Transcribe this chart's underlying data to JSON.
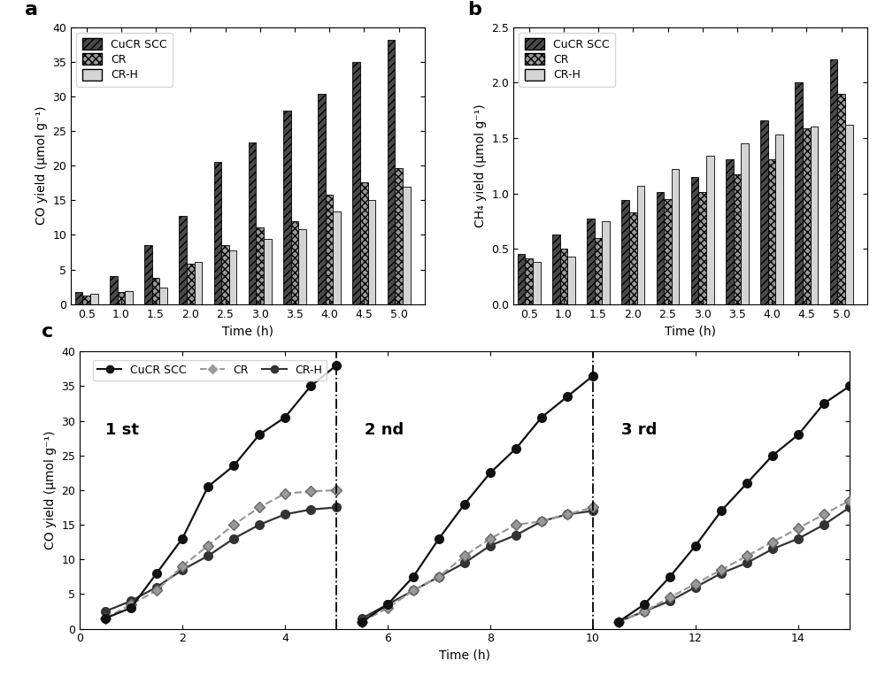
{
  "panel_a": {
    "times": [
      0.5,
      1.0,
      1.5,
      2.0,
      2.5,
      3.0,
      3.5,
      4.0,
      4.5,
      5.0
    ],
    "CuCR_SCC": [
      1.8,
      4.0,
      8.5,
      12.8,
      20.5,
      23.3,
      28.0,
      30.4,
      35.0,
      38.2
    ],
    "CR": [
      1.2,
      1.8,
      3.8,
      5.9,
      8.5,
      11.1,
      12.0,
      15.8,
      17.6,
      19.7
    ],
    "CR_H": [
      1.5,
      1.9,
      2.4,
      6.1,
      7.8,
      9.4,
      10.8,
      13.4,
      15.1,
      17.0
    ],
    "ylabel": "CO yield (μmol g⁻¹)",
    "xlabel": "Time (h)",
    "ylim": [
      0,
      40
    ],
    "yticks": [
      0,
      5,
      10,
      15,
      20,
      25,
      30,
      35,
      40
    ]
  },
  "panel_b": {
    "times": [
      0.5,
      1.0,
      1.5,
      2.0,
      2.5,
      3.0,
      3.5,
      4.0,
      4.5,
      5.0
    ],
    "CuCR_SCC": [
      0.45,
      0.63,
      0.77,
      0.94,
      1.01,
      1.15,
      1.31,
      1.66,
      2.0,
      2.21
    ],
    "CR": [
      0.41,
      0.5,
      0.6,
      0.83,
      0.95,
      1.01,
      1.17,
      1.31,
      1.59,
      1.9
    ],
    "CR_H": [
      0.38,
      0.43,
      0.75,
      1.07,
      1.22,
      1.34,
      1.45,
      1.53,
      1.6,
      1.62
    ],
    "ylabel": "CH₄ yield (μmol g⁻¹)",
    "xlabel": "Time (h)",
    "ylim": [
      0,
      2.5
    ],
    "yticks": [
      0.0,
      0.5,
      1.0,
      1.5,
      2.0,
      2.5
    ]
  },
  "panel_c": {
    "CuCR_SCC_1_x": [
      0.5,
      1.0,
      1.5,
      2.0,
      2.5,
      3.0,
      3.5,
      4.0,
      4.5,
      5.0
    ],
    "CuCR_SCC_1_y": [
      1.5,
      3.0,
      8.0,
      13.0,
      20.5,
      23.5,
      28.0,
      30.5,
      35.0,
      38.0
    ],
    "CR_1_x": [
      0.5,
      1.0,
      1.5,
      2.0,
      2.5,
      3.0,
      3.5,
      4.0,
      4.5,
      5.0
    ],
    "CR_1_y": [
      1.5,
      3.5,
      5.5,
      9.0,
      12.0,
      15.0,
      17.5,
      19.5,
      19.8,
      20.0
    ],
    "CRH_1_x": [
      0.5,
      1.0,
      1.5,
      2.0,
      2.5,
      3.0,
      3.5,
      4.0,
      4.5,
      5.0
    ],
    "CRH_1_y": [
      2.5,
      4.0,
      6.0,
      8.5,
      10.5,
      13.0,
      15.0,
      16.5,
      17.2,
      17.5
    ],
    "CuCR_SCC_2_x": [
      5.5,
      6.0,
      6.5,
      7.0,
      7.5,
      8.0,
      8.5,
      9.0,
      9.5,
      10.0
    ],
    "CuCR_SCC_2_y": [
      1.0,
      3.5,
      7.5,
      13.0,
      18.0,
      22.5,
      26.0,
      30.5,
      33.5,
      36.5
    ],
    "CR_2_x": [
      5.5,
      6.0,
      6.5,
      7.0,
      7.5,
      8.0,
      8.5,
      9.0,
      9.5,
      10.0
    ],
    "CR_2_y": [
      1.0,
      3.0,
      5.5,
      7.5,
      10.5,
      13.0,
      15.0,
      15.5,
      16.5,
      17.5
    ],
    "CRH_2_x": [
      5.5,
      6.0,
      6.5,
      7.0,
      7.5,
      8.0,
      8.5,
      9.0,
      9.5,
      10.0
    ],
    "CRH_2_y": [
      1.5,
      3.5,
      5.5,
      7.5,
      9.5,
      12.0,
      13.5,
      15.5,
      16.5,
      17.0
    ],
    "CuCR_SCC_3_x": [
      10.5,
      11.0,
      11.5,
      12.0,
      12.5,
      13.0,
      13.5,
      14.0,
      14.5,
      15.0
    ],
    "CuCR_SCC_3_y": [
      1.0,
      3.5,
      7.5,
      12.0,
      17.0,
      21.0,
      25.0,
      28.0,
      32.5,
      35.0
    ],
    "CR_3_x": [
      10.5,
      11.0,
      11.5,
      12.0,
      12.5,
      13.0,
      13.5,
      14.0,
      14.5,
      15.0
    ],
    "CR_3_y": [
      1.0,
      2.5,
      4.5,
      6.5,
      8.5,
      10.5,
      12.5,
      14.5,
      16.5,
      18.5
    ],
    "CRH_3_x": [
      10.5,
      11.0,
      11.5,
      12.0,
      12.5,
      13.0,
      13.5,
      14.0,
      14.5,
      15.0
    ],
    "CRH_3_y": [
      1.0,
      2.5,
      4.0,
      6.0,
      8.0,
      9.5,
      11.5,
      13.0,
      15.0,
      17.5
    ],
    "ylabel": "CO yield (μmol g⁻¹)",
    "xlabel": "Time (h)",
    "ylim": [
      0,
      40
    ],
    "yticks": [
      0,
      5,
      10,
      15,
      20,
      25,
      30,
      35,
      40
    ],
    "xlim": [
      0,
      15
    ],
    "xticks": [
      0,
      2,
      4,
      6,
      8,
      10,
      12,
      14
    ]
  }
}
